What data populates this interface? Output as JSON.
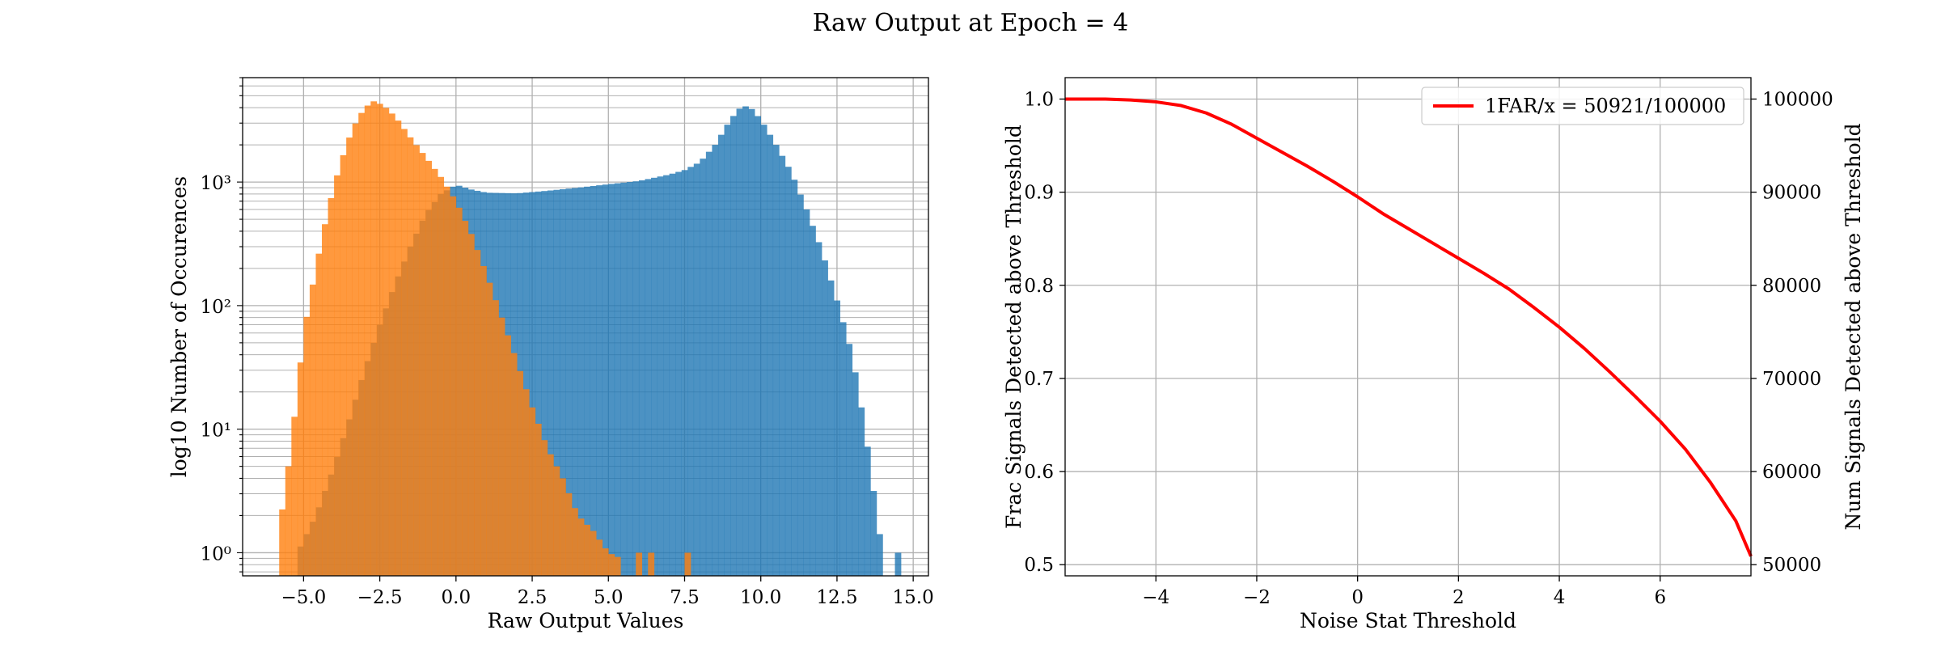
{
  "figure": {
    "title": "Raw Output at Epoch = 4"
  },
  "chart_data": [
    {
      "type": "bar",
      "subtype": "histogram",
      "yscale": "log",
      "xlabel": "Raw Output Values",
      "ylabel": "log10 Number of Occurences",
      "xlim": [
        -7.0,
        15.5
      ],
      "ylim": [
        0.65,
        7000
      ],
      "grid": true,
      "x_ticks": [
        -5.0,
        -2.5,
        0.0,
        2.5,
        5.0,
        7.5,
        10.0,
        12.5,
        15.0
      ],
      "x_tick_labels": [
        "−5.0",
        "−2.5",
        "0.0",
        "2.5",
        "5.0",
        "7.5",
        "10.0",
        "12.5",
        "15.0"
      ],
      "y_ticks": [
        1,
        10,
        100,
        1000
      ],
      "y_tick_labels": [
        "10⁰",
        "10¹",
        "10²",
        "10³"
      ],
      "bin_width": 0.2,
      "series": [
        {
          "color": "#1f77b4",
          "opacity": 0.8,
          "points": [
            [
              -5.2,
              1
            ],
            [
              -4.6,
              2
            ],
            [
              -4.0,
              5
            ],
            [
              -3.5,
              12
            ],
            [
              -3.0,
              30
            ],
            [
              -2.5,
              70
            ],
            [
              -2.0,
              150
            ],
            [
              -1.5,
              300
            ],
            [
              -1.0,
              550
            ],
            [
              -0.5,
              800
            ],
            [
              0.0,
              950
            ],
            [
              0.5,
              870
            ],
            [
              1.0,
              820
            ],
            [
              2.0,
              810
            ],
            [
              3.0,
              850
            ],
            [
              4.0,
              900
            ],
            [
              5.0,
              960
            ],
            [
              6.0,
              1020
            ],
            [
              7.0,
              1150
            ],
            [
              7.5,
              1250
            ],
            [
              8.0,
              1450
            ],
            [
              8.5,
              2000
            ],
            [
              9.0,
              3200
            ],
            [
              9.4,
              4200
            ],
            [
              9.7,
              3900
            ],
            [
              10.0,
              3200
            ],
            [
              10.5,
              2000
            ],
            [
              11.0,
              1200
            ],
            [
              11.5,
              600
            ],
            [
              12.0,
              280
            ],
            [
              12.5,
              110
            ],
            [
              13.0,
              40
            ],
            [
              13.3,
              15
            ],
            [
              13.6,
              5
            ],
            [
              13.8,
              2
            ],
            [
              14.0,
              1
            ]
          ],
          "isolated_bins": [
            [
              14.5,
              1
            ]
          ]
        },
        {
          "color": "#ff7f0e",
          "opacity": 0.8,
          "points": [
            [
              -5.8,
              1.5
            ],
            [
              -5.5,
              5
            ],
            [
              -5.2,
              20
            ],
            [
              -5.0,
              60
            ],
            [
              -4.6,
              200
            ],
            [
              -4.2,
              600
            ],
            [
              -3.8,
              1400
            ],
            [
              -3.4,
              2700
            ],
            [
              -3.0,
              4000
            ],
            [
              -2.7,
              4500
            ],
            [
              -2.4,
              4200
            ],
            [
              -2.0,
              3400
            ],
            [
              -1.5,
              2300
            ],
            [
              -1.0,
              1600
            ],
            [
              -0.5,
              1100
            ],
            [
              0.0,
              700
            ],
            [
              0.5,
              380
            ],
            [
              1.0,
              180
            ],
            [
              1.5,
              80
            ],
            [
              2.0,
              35
            ],
            [
              2.5,
              15
            ],
            [
              3.0,
              7
            ],
            [
              3.5,
              4
            ],
            [
              4.0,
              2
            ],
            [
              4.5,
              1.5
            ],
            [
              5.0,
              1
            ],
            [
              5.4,
              0.9
            ]
          ],
          "isolated_bins": [
            [
              6.0,
              1
            ],
            [
              6.4,
              1
            ],
            [
              7.6,
              1
            ]
          ]
        }
      ]
    },
    {
      "type": "line",
      "xlabel": "Noise Stat Threshold",
      "ylabel": "Frac Signals Detected above Threshold",
      "ylabel_right": "Num Signals Detected above Threshold",
      "xlim": [
        -5.8,
        7.8
      ],
      "ylim": [
        0.488,
        1.023
      ],
      "ylim_right": [
        48800,
        102300
      ],
      "grid": true,
      "x_ticks": [
        -4,
        -2,
        0,
        2,
        4,
        6
      ],
      "x_tick_labels": [
        "−4",
        "−2",
        "0",
        "2",
        "4",
        "6"
      ],
      "y_ticks": [
        0.5,
        0.6,
        0.7,
        0.8,
        0.9,
        1.0
      ],
      "y_tick_labels": [
        "0.5",
        "0.6",
        "0.7",
        "0.8",
        "0.9",
        "1.0"
      ],
      "y_ticks_right": [
        50000,
        60000,
        70000,
        80000,
        90000,
        100000
      ],
      "y_tick_labels_right": [
        "50000",
        "60000",
        "70000",
        "80000",
        "90000",
        "100000"
      ],
      "legend": {
        "placement": "top-right",
        "label": "1FAR/x = 50921/100000"
      },
      "series": [
        {
          "name": "1FAR/x = 50921/100000",
          "color": "#ff0000",
          "x": [
            -5.8,
            -5.0,
            -4.5,
            -4.0,
            -3.5,
            -3.0,
            -2.5,
            -2.0,
            -1.5,
            -1.0,
            -0.5,
            0.0,
            0.5,
            1.0,
            1.5,
            2.0,
            2.5,
            3.0,
            3.5,
            4.0,
            4.5,
            5.0,
            5.5,
            6.0,
            6.5,
            7.0,
            7.5,
            7.8
          ],
          "y": [
            1.0,
            1.0,
            0.999,
            0.997,
            0.993,
            0.985,
            0.973,
            0.958,
            0.943,
            0.928,
            0.912,
            0.895,
            0.877,
            0.861,
            0.845,
            0.829,
            0.813,
            0.796,
            0.776,
            0.755,
            0.732,
            0.707,
            0.681,
            0.654,
            0.624,
            0.588,
            0.547,
            0.509
          ]
        }
      ]
    }
  ]
}
